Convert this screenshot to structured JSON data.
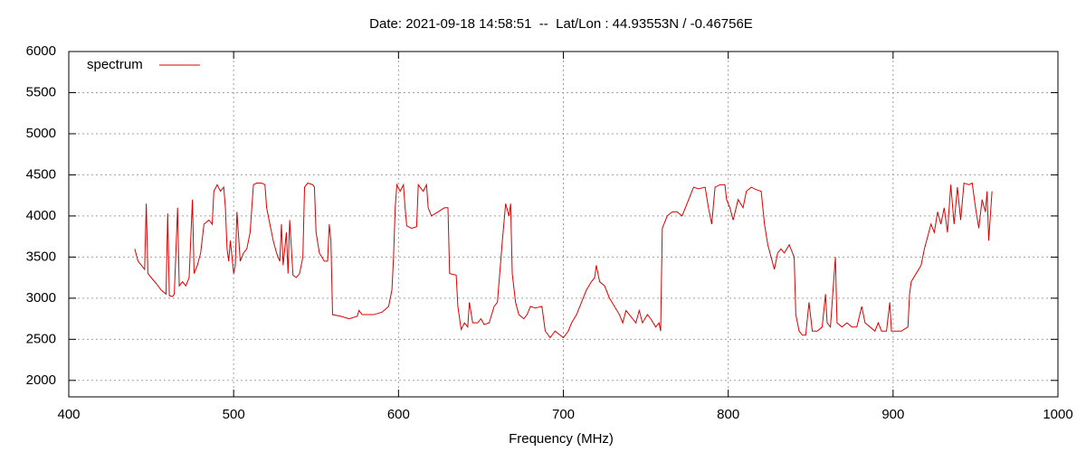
{
  "chart_data": {
    "type": "line",
    "title": "Date: 2021-09-18 14:58:51  --  Lat/Lon : 44.93553N / -0.46756E",
    "xlabel": "Frequency (MHz)",
    "xlim": [
      400,
      1000
    ],
    "xticks": [
      400,
      500,
      600,
      700,
      800,
      900,
      1000
    ],
    "ylim": [
      1800,
      6000
    ],
    "yticks": [
      2000,
      2500,
      3000,
      3500,
      4000,
      4500,
      5000,
      5500,
      6000
    ],
    "grid": true,
    "legend": "upper left",
    "x": [
      440,
      442,
      444,
      446,
      447,
      448,
      450,
      453,
      456,
      459,
      460,
      461,
      463,
      464,
      466,
      467,
      469,
      471,
      473,
      475,
      476,
      478,
      480,
      482,
      485,
      487,
      488,
      490,
      492,
      494,
      495,
      496,
      497,
      498,
      500,
      501,
      502,
      504,
      506,
      508,
      510,
      512,
      514,
      517,
      519,
      520,
      522,
      524,
      526,
      528,
      529,
      530,
      532,
      533,
      534,
      536,
      538,
      540,
      542,
      543,
      545,
      548,
      549,
      550,
      552,
      555,
      557,
      558,
      559,
      560,
      565,
      570,
      575,
      576,
      578,
      585,
      590,
      594,
      596,
      597,
      598,
      599,
      601,
      603,
      604,
      605,
      608,
      611,
      612,
      615,
      617,
      618,
      620,
      624,
      628,
      630,
      631,
      635,
      636,
      638,
      640,
      642,
      643,
      645,
      648,
      650,
      652,
      655,
      658,
      660,
      663,
      665,
      667,
      668,
      669,
      671,
      673,
      676,
      678,
      680,
      683,
      687,
      689,
      692,
      695,
      698,
      700,
      703,
      705,
      708,
      711,
      714,
      717,
      719,
      720,
      722,
      725,
      728,
      731,
      734,
      736,
      738,
      740,
      742,
      744,
      746,
      748,
      751,
      753,
      756,
      758,
      759,
      760,
      763,
      766,
      769,
      772,
      775,
      777,
      779,
      782,
      786,
      788,
      790,
      792,
      795,
      798,
      799,
      801,
      803,
      806,
      809,
      811,
      814,
      817,
      820,
      822,
      824,
      826,
      828,
      830,
      832,
      834,
      837,
      839,
      840,
      841,
      843,
      845,
      847,
      849,
      851,
      854,
      857,
      859,
      860,
      862,
      865,
      866,
      869,
      872,
      875,
      878,
      881,
      883,
      886,
      889,
      891,
      893,
      896,
      898,
      899,
      902,
      905,
      909,
      910,
      911,
      914,
      917,
      919,
      921,
      923,
      925,
      927,
      929,
      931,
      933,
      935,
      937,
      939,
      941,
      943,
      946,
      948,
      950,
      952,
      954,
      956,
      957,
      958,
      960
    ],
    "series": [
      {
        "name": "spectrum",
        "color": "#dd0000",
        "values": [
          3600,
          3450,
          3400,
          3350,
          4150,
          3300,
          3250,
          3180,
          3100,
          3050,
          4030,
          3030,
          3020,
          3050,
          4100,
          3150,
          3200,
          3150,
          3250,
          4200,
          3300,
          3400,
          3550,
          3900,
          3950,
          3900,
          4300,
          4380,
          4300,
          4350,
          4100,
          3600,
          3450,
          3700,
          3300,
          3400,
          4050,
          3450,
          3550,
          3600,
          3800,
          4380,
          4400,
          4400,
          4380,
          4100,
          3900,
          3700,
          3550,
          3450,
          3900,
          3400,
          3800,
          3300,
          3950,
          3280,
          3250,
          3300,
          3500,
          4350,
          4400,
          4380,
          4350,
          3800,
          3550,
          3450,
          3450,
          3900,
          3700,
          2800,
          2780,
          2750,
          2780,
          2850,
          2800,
          2800,
          2830,
          2900,
          3100,
          3500,
          4100,
          4380,
          4300,
          4380,
          4100,
          3880,
          3850,
          3870,
          4380,
          4300,
          4380,
          4100,
          4000,
          4050,
          4100,
          4100,
          3300,
          3280,
          2900,
          2620,
          2700,
          2650,
          2950,
          2700,
          2700,
          2750,
          2680,
          2700,
          2900,
          2950,
          3700,
          4150,
          4000,
          4150,
          3300,
          2950,
          2800,
          2750,
          2800,
          2900,
          2880,
          2900,
          2600,
          2520,
          2600,
          2550,
          2520,
          2600,
          2700,
          2800,
          2950,
          3100,
          3200,
          3250,
          3400,
          3200,
          3150,
          3000,
          2900,
          2800,
          2700,
          2850,
          2800,
          2750,
          2700,
          2850,
          2700,
          2800,
          2750,
          2650,
          2700,
          2600,
          3850,
          4000,
          4050,
          4050,
          4000,
          4150,
          4250,
          4350,
          4330,
          4350,
          4100,
          3900,
          4350,
          4380,
          4380,
          4200,
          4100,
          3950,
          4200,
          4100,
          4300,
          4350,
          4320,
          4300,
          3900,
          3650,
          3500,
          3350,
          3550,
          3600,
          3550,
          3650,
          3550,
          3500,
          2800,
          2600,
          2550,
          2550,
          2950,
          2600,
          2600,
          2650,
          3050,
          2700,
          2650,
          3500,
          2700,
          2650,
          2700,
          2650,
          2650,
          2900,
          2700,
          2650,
          2600,
          2700,
          2600,
          2600,
          2950,
          2600,
          2600,
          2600,
          2650,
          3050,
          3200,
          3300,
          3400,
          3600,
          3750,
          3900,
          3800,
          4050,
          3900,
          4100,
          3800,
          4380,
          3900,
          4350,
          3950,
          4400,
          4380,
          4400,
          4100,
          3850,
          4200,
          4050,
          4300,
          3700,
          4300
        ]
      }
    ]
  }
}
